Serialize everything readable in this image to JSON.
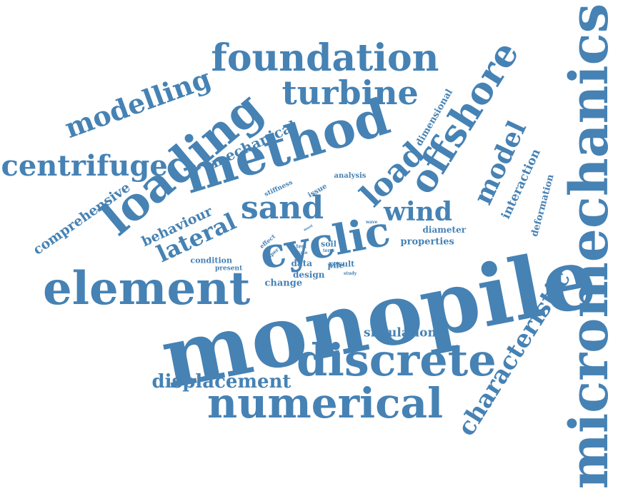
{
  "color": "#4682b4",
  "words": [
    {
      "text": "monopile",
      "size": 118,
      "rot": -11
    },
    {
      "text": "micromechanics",
      "size": 74,
      "rot": -90
    },
    {
      "text": "method",
      "size": 70,
      "rot": -17
    },
    {
      "text": "loading",
      "size": 64,
      "rot": -40
    },
    {
      "text": "element",
      "size": 64,
      "rot": 0
    },
    {
      "text": "discrete",
      "size": 62,
      "rot": 0
    },
    {
      "text": "numerical",
      "size": 58,
      "rot": 0
    },
    {
      "text": "cyclic",
      "size": 58,
      "rot": -11
    },
    {
      "text": "foundation",
      "size": 52,
      "rot": 0
    },
    {
      "text": "offshore",
      "size": 52,
      "rot": -58
    },
    {
      "text": "turbine",
      "size": 46,
      "rot": 0
    },
    {
      "text": "sand",
      "size": 44,
      "rot": 0
    },
    {
      "text": "load",
      "size": 44,
      "rot": -45
    },
    {
      "text": "centrifuge",
      "size": 40,
      "rot": 0
    },
    {
      "text": "modelling",
      "size": 38,
      "rot": -20
    },
    {
      "text": "wind",
      "size": 36,
      "rot": 0
    },
    {
      "text": "model",
      "size": 36,
      "rot": -65
    },
    {
      "text": "characteristic",
      "size": 34,
      "rot": -58
    },
    {
      "text": "lateral",
      "size": 32,
      "rot": -25
    },
    {
      "text": "displacement",
      "size": 26,
      "rot": 0
    },
    {
      "text": "mechanical",
      "size": 20,
      "rot": -25
    },
    {
      "text": "behaviour",
      "size": 19,
      "rot": -25
    },
    {
      "text": "comprehensive",
      "size": 19,
      "rot": -35
    },
    {
      "text": "interaction",
      "size": 17,
      "rot": -65
    },
    {
      "text": "simulation",
      "size": 17,
      "rot": 0
    },
    {
      "text": "deformation",
      "size": 13,
      "rot": -75
    },
    {
      "text": "dimensional",
      "size": 13,
      "rot": -60
    },
    {
      "text": "properties",
      "size": 13,
      "rot": 0
    },
    {
      "text": "change",
      "size": 13,
      "rot": 0
    },
    {
      "text": "diameter",
      "size": 12,
      "rot": 0
    },
    {
      "text": "design",
      "size": 12,
      "rot": 0
    },
    {
      "text": "data",
      "size": 12,
      "rot": 0
    },
    {
      "text": "result",
      "size": 11,
      "rot": 0
    },
    {
      "text": "pile",
      "size": 11,
      "rot": 0
    },
    {
      "text": "soil",
      "size": 11,
      "rot": 0
    },
    {
      "text": "condition",
      "size": 11,
      "rot": 0
    },
    {
      "text": "issue",
      "size": 10,
      "rot": -30
    },
    {
      "text": "analysis",
      "size": 10,
      "rot": 0
    },
    {
      "text": "stiffness",
      "size": 9,
      "rot": -25
    },
    {
      "text": "present",
      "size": 9,
      "rot": 0
    },
    {
      "text": "effect",
      "size": 8,
      "rot": -40
    },
    {
      "text": "paper",
      "size": 7,
      "rot": -40
    },
    {
      "text": "test",
      "size": 7,
      "rot": 0
    },
    {
      "text": "scale",
      "size": 6,
      "rot": 0
    },
    {
      "text": "term",
      "size": 6,
      "rot": 0
    },
    {
      "text": "study",
      "size": 6,
      "rot": 0
    },
    {
      "text": "wave",
      "size": 6,
      "rot": 0
    },
    {
      "text": "most",
      "size": 5,
      "rot": -30
    }
  ]
}
